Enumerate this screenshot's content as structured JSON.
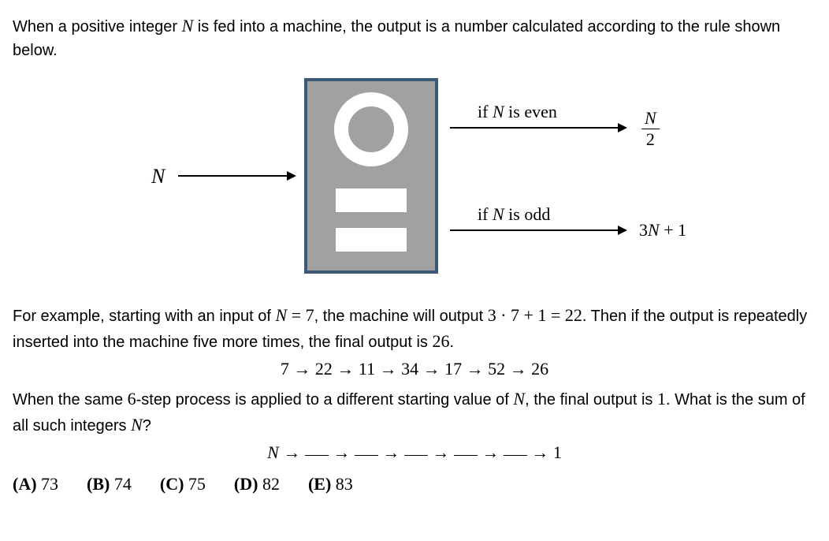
{
  "intro_part1": "When a positive integer ",
  "intro_var": "N",
  "intro_part2": " is fed into a machine, the output is a number calculated according to the rule shown below.",
  "diagram": {
    "input_label": "N",
    "machine": {
      "outer_border_color": "#3c5a78",
      "outer_border_width": 4,
      "fill_color": "#a1a1a1",
      "ring_outer_color": "#ffffff",
      "rect_color": "#ffffff"
    },
    "branch_even": {
      "label_prefix": "if ",
      "label_var": "N",
      "label_suffix": " is even",
      "output_numerator": "N",
      "output_denominator": "2"
    },
    "branch_odd": {
      "label_prefix": "if ",
      "label_var": "N",
      "label_suffix": " is odd",
      "output": "3N + 1",
      "output_prefix": "3",
      "output_var": "N",
      "output_suffix": " + 1"
    }
  },
  "example_p1": "For example, starting with an input of ",
  "example_eq1_lhs": "N = 7",
  "example_eq1_var": "N",
  "example_eq1_rest": " = 7",
  "example_p2": ", the machine will output ",
  "example_eq2": "3 · 7 + 1 = 22",
  "example_p3": ". Then if the output is repeatedly inserted into the machine five more times, the final output is ",
  "example_final": "26",
  "example_p4": ".",
  "chain": [
    "7",
    "22",
    "11",
    "34",
    "17",
    "52",
    "26"
  ],
  "followup_p1": "When the same ",
  "followup_num": "6",
  "followup_p2": "-step process is applied to a different starting value of ",
  "followup_var": "N",
  "followup_p3": ", the final output is ",
  "followup_final": "1",
  "followup_p4": ". What is the sum of all such integers ",
  "followup_var2": "N",
  "followup_p5": "?",
  "blank_chain": {
    "start": "N",
    "end": "1",
    "blanks": 5
  },
  "choices": [
    {
      "label": "(A)",
      "value": "73"
    },
    {
      "label": "(B)",
      "value": "74"
    },
    {
      "label": "(C)",
      "value": "75"
    },
    {
      "label": "(D)",
      "value": "82"
    },
    {
      "label": "(E)",
      "value": "83"
    }
  ]
}
